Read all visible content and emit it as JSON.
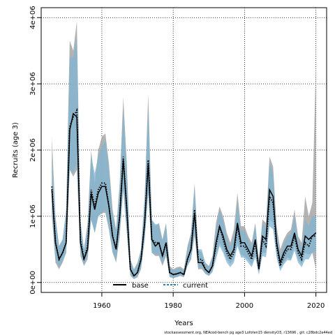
{
  "chart_data": {
    "type": "line",
    "xlabel": "Years",
    "ylabel": "Recruits (age 3)",
    "xlim": [
      1943,
      2023
    ],
    "ylim": [
      -150000,
      4150000
    ],
    "x_ticks": [
      1960,
      1980,
      2000,
      2020
    ],
    "x_tick_labels": [
      "1960",
      "1980",
      "2000",
      "2020"
    ],
    "y_ticks": [
      0,
      1000000,
      2000000,
      3000000,
      4000000
    ],
    "y_tick_labels": [
      "0e+00",
      "1e+06",
      "2e+06",
      "3e+06",
      "4e+06"
    ],
    "grid": true,
    "legend_position": "bottom-left",
    "x": [
      1946,
      1947,
      1948,
      1949,
      1950,
      1951,
      1952,
      1953,
      1954,
      1955,
      1956,
      1957,
      1958,
      1959,
      1960,
      1961,
      1962,
      1963,
      1964,
      1965,
      1966,
      1967,
      1968,
      1969,
      1970,
      1971,
      1972,
      1973,
      1974,
      1975,
      1976,
      1977,
      1978,
      1979,
      1980,
      1981,
      1982,
      1983,
      1984,
      1985,
      1986,
      1987,
      1988,
      1989,
      1990,
      1991,
      1992,
      1993,
      1994,
      1995,
      1996,
      1997,
      1998,
      1999,
      2000,
      2001,
      2002,
      2003,
      2004,
      2005,
      2006,
      2007,
      2008,
      2009,
      2010,
      2011,
      2012,
      2013,
      2014,
      2015,
      2016,
      2017,
      2018,
      2019,
      2020
    ],
    "series": [
      {
        "name": "base",
        "color": "#000000",
        "line_style": "solid",
        "band_color": "#a6a6a6",
        "values": [
          1400000,
          600000,
          350000,
          450000,
          600000,
          2300000,
          2550000,
          2500000,
          600000,
          350000,
          500000,
          1350000,
          1100000,
          1350000,
          1450000,
          1450000,
          1150000,
          700000,
          500000,
          1000000,
          1850000,
          1100000,
          200000,
          100000,
          150000,
          350000,
          900000,
          1800000,
          650000,
          550000,
          600000,
          400000,
          600000,
          150000,
          120000,
          130000,
          150000,
          120000,
          350000,
          500000,
          1050000,
          300000,
          300000,
          200000,
          150000,
          250000,
          600000,
          850000,
          700000,
          500000,
          400000,
          500000,
          900000,
          600000,
          600000,
          500000,
          400000,
          650000,
          200000,
          700000,
          650000,
          1400000,
          1300000,
          600000,
          300000,
          450000,
          550000,
          550000,
          750000,
          500000,
          400000,
          700000,
          650000,
          700000,
          750000
        ],
        "lower": [
          1000000,
          300000,
          200000,
          300000,
          450000,
          1700000,
          1600000,
          1700000,
          400000,
          250000,
          350000,
          950000,
          750000,
          1000000,
          1050000,
          1050000,
          800000,
          450000,
          300000,
          700000,
          1400000,
          750000,
          100000,
          50000,
          80000,
          200000,
          650000,
          1350000,
          450000,
          400000,
          400000,
          250000,
          400000,
          80000,
          70000,
          80000,
          100000,
          80000,
          250000,
          350000,
          700000,
          200000,
          200000,
          130000,
          100000,
          160000,
          400000,
          600000,
          500000,
          350000,
          280000,
          350000,
          600000,
          420000,
          400000,
          350000,
          270000,
          400000,
          130000,
          450000,
          450000,
          950000,
          900000,
          400000,
          200000,
          300000,
          380000,
          350000,
          550000,
          350000,
          270000,
          450000,
          420000,
          450000,
          200000
        ],
        "upper": [
          2200000,
          1000000,
          550000,
          650000,
          1100000,
          3650000,
          3500000,
          3950000,
          900000,
          500000,
          900000,
          2000000,
          1500000,
          2000000,
          2200000,
          2250000,
          1800000,
          1100000,
          800000,
          1500000,
          2800000,
          1800000,
          350000,
          200000,
          300000,
          500000,
          1300000,
          2850000,
          950000,
          850000,
          900000,
          650000,
          900000,
          250000,
          200000,
          230000,
          240000,
          200000,
          550000,
          750000,
          1500000,
          500000,
          450000,
          300000,
          250000,
          400000,
          900000,
          1150000,
          1000000,
          750000,
          600000,
          800000,
          1350000,
          850000,
          850000,
          700000,
          600000,
          900000,
          350000,
          950000,
          900000,
          1900000,
          1750000,
          850000,
          500000,
          650000,
          750000,
          800000,
          1100000,
          700000,
          600000,
          1300000,
          1000000,
          1200000,
          3300000
        ]
      },
      {
        "name": "current",
        "color": "#2a84b4",
        "line_style": "dotted",
        "band_color": "#7fb6d3",
        "values": [
          1450000,
          600000,
          350000,
          450000,
          600000,
          2350000,
          2500000,
          2600000,
          650000,
          350000,
          550000,
          1400000,
          1150000,
          1400000,
          1500000,
          1500000,
          1150000,
          700000,
          500000,
          1000000,
          1900000,
          1100000,
          200000,
          100000,
          150000,
          350000,
          900000,
          1850000,
          650000,
          600000,
          600000,
          400000,
          600000,
          150000,
          120000,
          130000,
          150000,
          120000,
          350000,
          500000,
          1100000,
          350000,
          350000,
          200000,
          150000,
          250000,
          550000,
          850000,
          650000,
          450000,
          350000,
          450000,
          850000,
          550000,
          550000,
          450000,
          350000,
          600000,
          200000,
          650000,
          550000,
          1300000,
          1200000,
          550000,
          250000,
          400000,
          500000,
          500000,
          700000,
          450000,
          350000,
          600000,
          550000,
          700000,
          700000
        ],
        "lower": [
          1100000,
          350000,
          230000,
          320000,
          450000,
          1700000,
          1650000,
          1800000,
          450000,
          260000,
          400000,
          950000,
          750000,
          1000000,
          1050000,
          1100000,
          800000,
          470000,
          330000,
          700000,
          1400000,
          750000,
          120000,
          60000,
          90000,
          220000,
          650000,
          1350000,
          450000,
          420000,
          420000,
          270000,
          420000,
          90000,
          75000,
          85000,
          100000,
          85000,
          250000,
          350000,
          750000,
          220000,
          230000,
          130000,
          100000,
          160000,
          350000,
          550000,
          450000,
          300000,
          230000,
          300000,
          550000,
          380000,
          370000,
          300000,
          230000,
          380000,
          120000,
          400000,
          380000,
          850000,
          800000,
          370000,
          170000,
          270000,
          340000,
          330000,
          480000,
          300000,
          230000,
          350000,
          350000,
          450000,
          470000
        ],
        "upper": [
          1900000,
          950000,
          550000,
          650000,
          1050000,
          3400000,
          3400000,
          3700000,
          950000,
          500000,
          850000,
          1900000,
          1650000,
          1900000,
          2050000,
          2150000,
          1700000,
          1050000,
          780000,
          1450000,
          2600000,
          1700000,
          350000,
          190000,
          280000,
          500000,
          1300000,
          2650000,
          950000,
          880000,
          880000,
          620000,
          880000,
          230000,
          180000,
          210000,
          220000,
          180000,
          500000,
          720000,
          1450000,
          500000,
          500000,
          290000,
          230000,
          370000,
          800000,
          1100000,
          950000,
          680000,
          530000,
          700000,
          1200000,
          780000,
          780000,
          650000,
          530000,
          870000,
          300000,
          900000,
          800000,
          1800000,
          1650000,
          780000,
          400000,
          580000,
          700000,
          720000,
          1000000,
          650000,
          520000,
          950000,
          850000,
          1000000,
          1000000
        ]
      }
    ]
  },
  "footer": "stockassessment.org,  NEAcod-bench  pg  age3  Lofoten15  densityO3,  r13696 ,  git:  c28bdc2a44ed"
}
